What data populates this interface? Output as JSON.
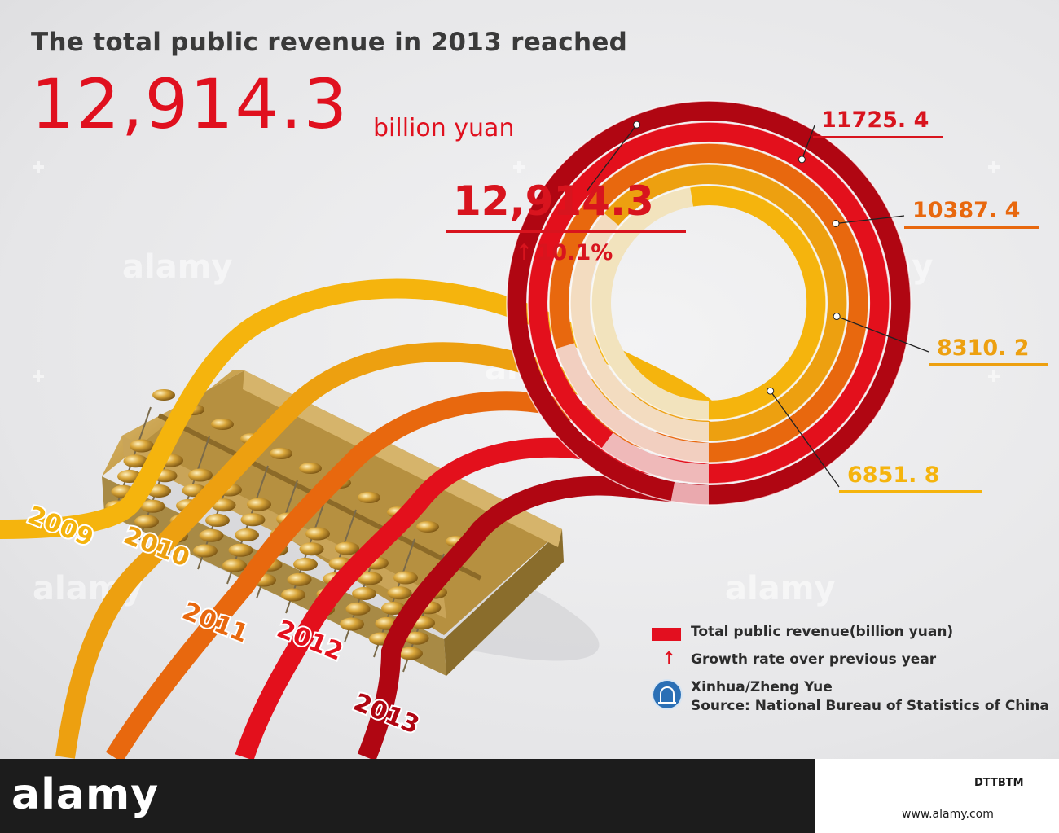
{
  "headline": "The total public revenue in 2013 reached",
  "big_number": "12,914.3",
  "big_unit": "billion yuan",
  "center_value": "12,914.3",
  "growth_arrow": "↑",
  "growth_text": "10.1%",
  "value_labels": [
    "6851. 8",
    "8310. 2",
    "10387. 4",
    "11725. 4"
  ],
  "legend": {
    "revenue_label": "Total public revenue(billion yuan)",
    "growth_label": "Growth rate over previous year",
    "arrow": "↑",
    "credit": "Xinhua/Zheng Yue",
    "source": "Source: National Bureau of Statistics of China"
  },
  "watermark": "alamy",
  "footer": {
    "logo": "alamy",
    "image_id": "DTTBTM",
    "url": "www.alamy.com"
  },
  "colors": {
    "y2009": "#f5b40d",
    "y2010": "#eda010",
    "y2011": "#e8680e",
    "y2012": "#e3101c",
    "y2013": "#b00612",
    "accent": "#e0101e"
  },
  "chart_data": {
    "type": "radial-bar",
    "title": "The total public revenue in 2013 reached",
    "unit": "billion yuan",
    "categories": [
      "2009",
      "2010",
      "2011",
      "2012",
      "2013"
    ],
    "values": [
      6851.8,
      8310.2,
      10387.4,
      11725.4,
      12914.3
    ],
    "growth_2013_pct": 10.1,
    "series": [
      {
        "name": "Total public revenue(billion yuan)",
        "values": [
          6851.8,
          8310.2,
          10387.4,
          11725.4,
          12914.3
        ]
      }
    ]
  }
}
